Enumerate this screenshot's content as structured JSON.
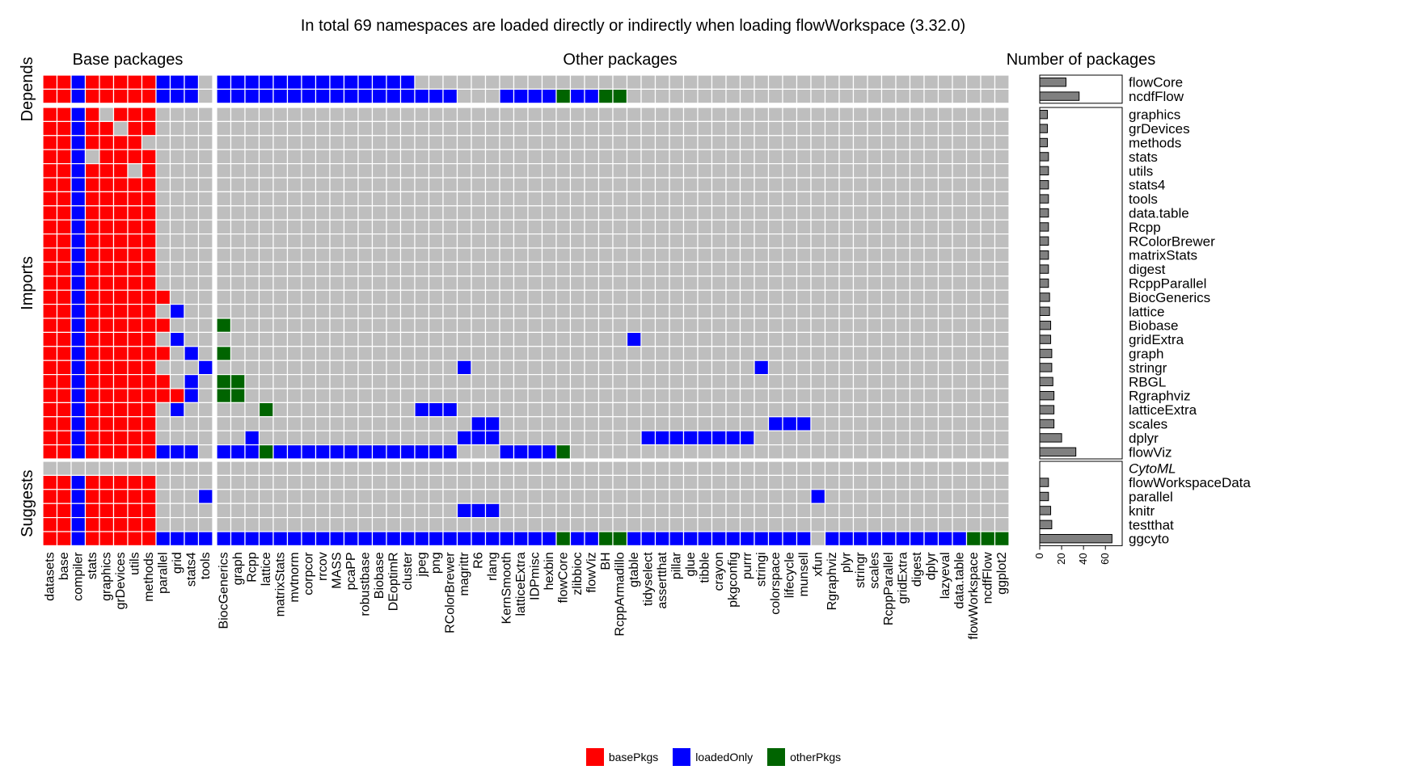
{
  "chart_data": {
    "type": "heatmap",
    "title": "In total 69 namespaces are loaded directly or indirectly when loading flowWorkspace (3.32.0)",
    "column_group_titles": [
      "Base packages",
      "Other packages",
      "Number of packages"
    ],
    "columns": {
      "base": [
        "datasets",
        "base",
        "compiler",
        "stats",
        "graphics",
        "grDevices",
        "utils",
        "methods",
        "parallel",
        "grid",
        "stats4",
        "tools"
      ],
      "other": [
        "BiocGenerics",
        "graph",
        "Rcpp",
        "lattice",
        "matrixStats",
        "mvtnorm",
        "corpcor",
        "rrcov",
        "MASS",
        "pcaPP",
        "robustbase",
        "Biobase",
        "DEoptimR",
        "cluster",
        "jpeg",
        "png",
        "RColorBrewer",
        "magrittr",
        "R6",
        "rlang",
        "KernSmooth",
        "latticeExtra",
        "IDPmisc",
        "hexbin",
        "flowCore",
        "zlibbioc",
        "flowViz",
        "BH",
        "RcppArmadillo",
        "gtable",
        "tidyselect",
        "assertthat",
        "pillar",
        "glue",
        "tibble",
        "crayon",
        "pkgconfig",
        "purrr",
        "stringi",
        "colorspace",
        "lifecycle",
        "munsell",
        "xfun",
        "Rgraphviz",
        "plyr",
        "stringr",
        "scales",
        "RcppParallel",
        "gridExtra",
        "digest",
        "dplyr",
        "lazyeval",
        "data.table",
        "flowWorkspace",
        "ncdfFlow",
        "ggplot2"
      ]
    },
    "row_groups": [
      {
        "name": "Depends",
        "rows": [
          {
            "label": "flowCore",
            "count": 24,
            "base": "RRBRRRRRBBB_",
            "other": [
              "0-13:B"
            ]
          },
          {
            "label": "ncdfFlow",
            "count": 36,
            "base": "RRBRRRRRBBB_",
            "other": [
              "0-16:B",
              "20-23:B",
              "24:G",
              "25-26:B",
              "27-28:G"
            ]
          }
        ]
      },
      {
        "name": "Imports",
        "rows": [
          {
            "label": "graphics",
            "count": 7,
            "base": "RRBR_RRR____",
            "other": []
          },
          {
            "label": "grDevices",
            "count": 7,
            "base": "RRBRR_RR____",
            "other": []
          },
          {
            "label": "methods",
            "count": 7,
            "base": "RRBRRRR_____",
            "other": []
          },
          {
            "label": "stats",
            "count": 8,
            "base": "RRB_RRRR____",
            "other": []
          },
          {
            "label": "utils",
            "count": 8,
            "base": "RRBRRR_R____",
            "other": []
          },
          {
            "label": "stats4",
            "count": 8,
            "base": "RRBRRRRR____",
            "other": []
          },
          {
            "label": "tools",
            "count": 8,
            "base": "RRBRRRRR____",
            "other": []
          },
          {
            "label": "data.table",
            "count": 8,
            "base": "RRBRRRRR____",
            "other": []
          },
          {
            "label": "Rcpp",
            "count": 8,
            "base": "RRBRRRRR____",
            "other": []
          },
          {
            "label": "RColorBrewer",
            "count": 8,
            "base": "RRBRRRRR____",
            "other": []
          },
          {
            "label": "matrixStats",
            "count": 8,
            "base": "RRBRRRRR____",
            "other": []
          },
          {
            "label": "digest",
            "count": 8,
            "base": "RRBRRRRR____",
            "other": []
          },
          {
            "label": "RcppParallel",
            "count": 8,
            "base": "RRBRRRRR____",
            "other": []
          },
          {
            "label": "BiocGenerics",
            "count": 9,
            "base": "RRBRRRRRR___",
            "other": []
          },
          {
            "label": "lattice",
            "count": 9,
            "base": "RRBRRRRR_B__",
            "other": []
          },
          {
            "label": "Biobase",
            "count": 10,
            "base": "RRBRRRRRR___",
            "other": [
              "0:G"
            ]
          },
          {
            "label": "gridExtra",
            "count": 10,
            "base": "RRBRRRRR_B__",
            "other": [
              "29:B"
            ]
          },
          {
            "label": "graph",
            "count": 11,
            "base": "RRBRRRRRR_B_",
            "other": [
              "0:G"
            ]
          },
          {
            "label": "stringr",
            "count": 11,
            "base": "RRBRRRRR___B",
            "other": [
              "17:B",
              "38:B"
            ]
          },
          {
            "label": "RBGL",
            "count": 12,
            "base": "RRBRRRRRR_B_",
            "other": [
              "0-1:G"
            ]
          },
          {
            "label": "Rgraphviz",
            "count": 13,
            "base": "RRBRRRRRRRB_",
            "other": [
              "0-1:G"
            ]
          },
          {
            "label": "latticeExtra",
            "count": 13,
            "base": "RRBRRRRR_B__",
            "other": [
              "3:G",
              "14-16:B"
            ]
          },
          {
            "label": "scales",
            "count": 13,
            "base": "RRBRRRRR____",
            "other": [
              "18-19:B",
              "39-41:B"
            ]
          },
          {
            "label": "dplyr",
            "count": 20,
            "base": "RRBRRRRR____",
            "other": [
              "2:B",
              "17-19:B",
              "30-37:B"
            ]
          },
          {
            "label": "flowViz",
            "count": 33,
            "base": "RRBRRRRRBBB_",
            "other": [
              "0-2:B",
              "3:G",
              "4-16:B",
              "20-23:B",
              "24:G"
            ]
          }
        ]
      },
      {
        "name": "Suggests",
        "rows": [
          {
            "label": "CytoML",
            "count": 0,
            "base": "____________",
            "other": [],
            "missing": true
          },
          {
            "label": "flowWorkspaceData",
            "count": 8,
            "base": "RRBRRRRR____",
            "other": []
          },
          {
            "label": "parallel",
            "count": 8,
            "base": "RRBRRRRR___B",
            "other": [
              "42:B"
            ]
          },
          {
            "label": "knitr",
            "count": 10,
            "base": "RRBRRRRR____",
            "other": [
              "17-19:B"
            ]
          },
          {
            "label": "testthat",
            "count": 11,
            "base": "RRBRRRRR____",
            "other": []
          },
          {
            "label": "ggcyto",
            "count": 66,
            "base": "RRBRRRRRBBBB",
            "other": [
              "0-23:B",
              "24:G",
              "25-26:B",
              "27-28:G",
              "29-41:B",
              "43-52:B",
              "53-55:G"
            ]
          }
        ]
      }
    ],
    "bar_axis": {
      "ticks": [
        0,
        20,
        40,
        60
      ],
      "xlim": [
        0,
        70
      ]
    },
    "legend": [
      {
        "label": "basePkgs",
        "color": "#ff0000"
      },
      {
        "label": "loadedOnly",
        "color": "#0000ff"
      },
      {
        "label": "otherPkgs",
        "color": "#006400"
      }
    ],
    "colors": {
      "empty": "#bebebe",
      "grid": "#ffffff",
      "missing_label": "#a0a0a0",
      "bar": "#808080"
    }
  }
}
